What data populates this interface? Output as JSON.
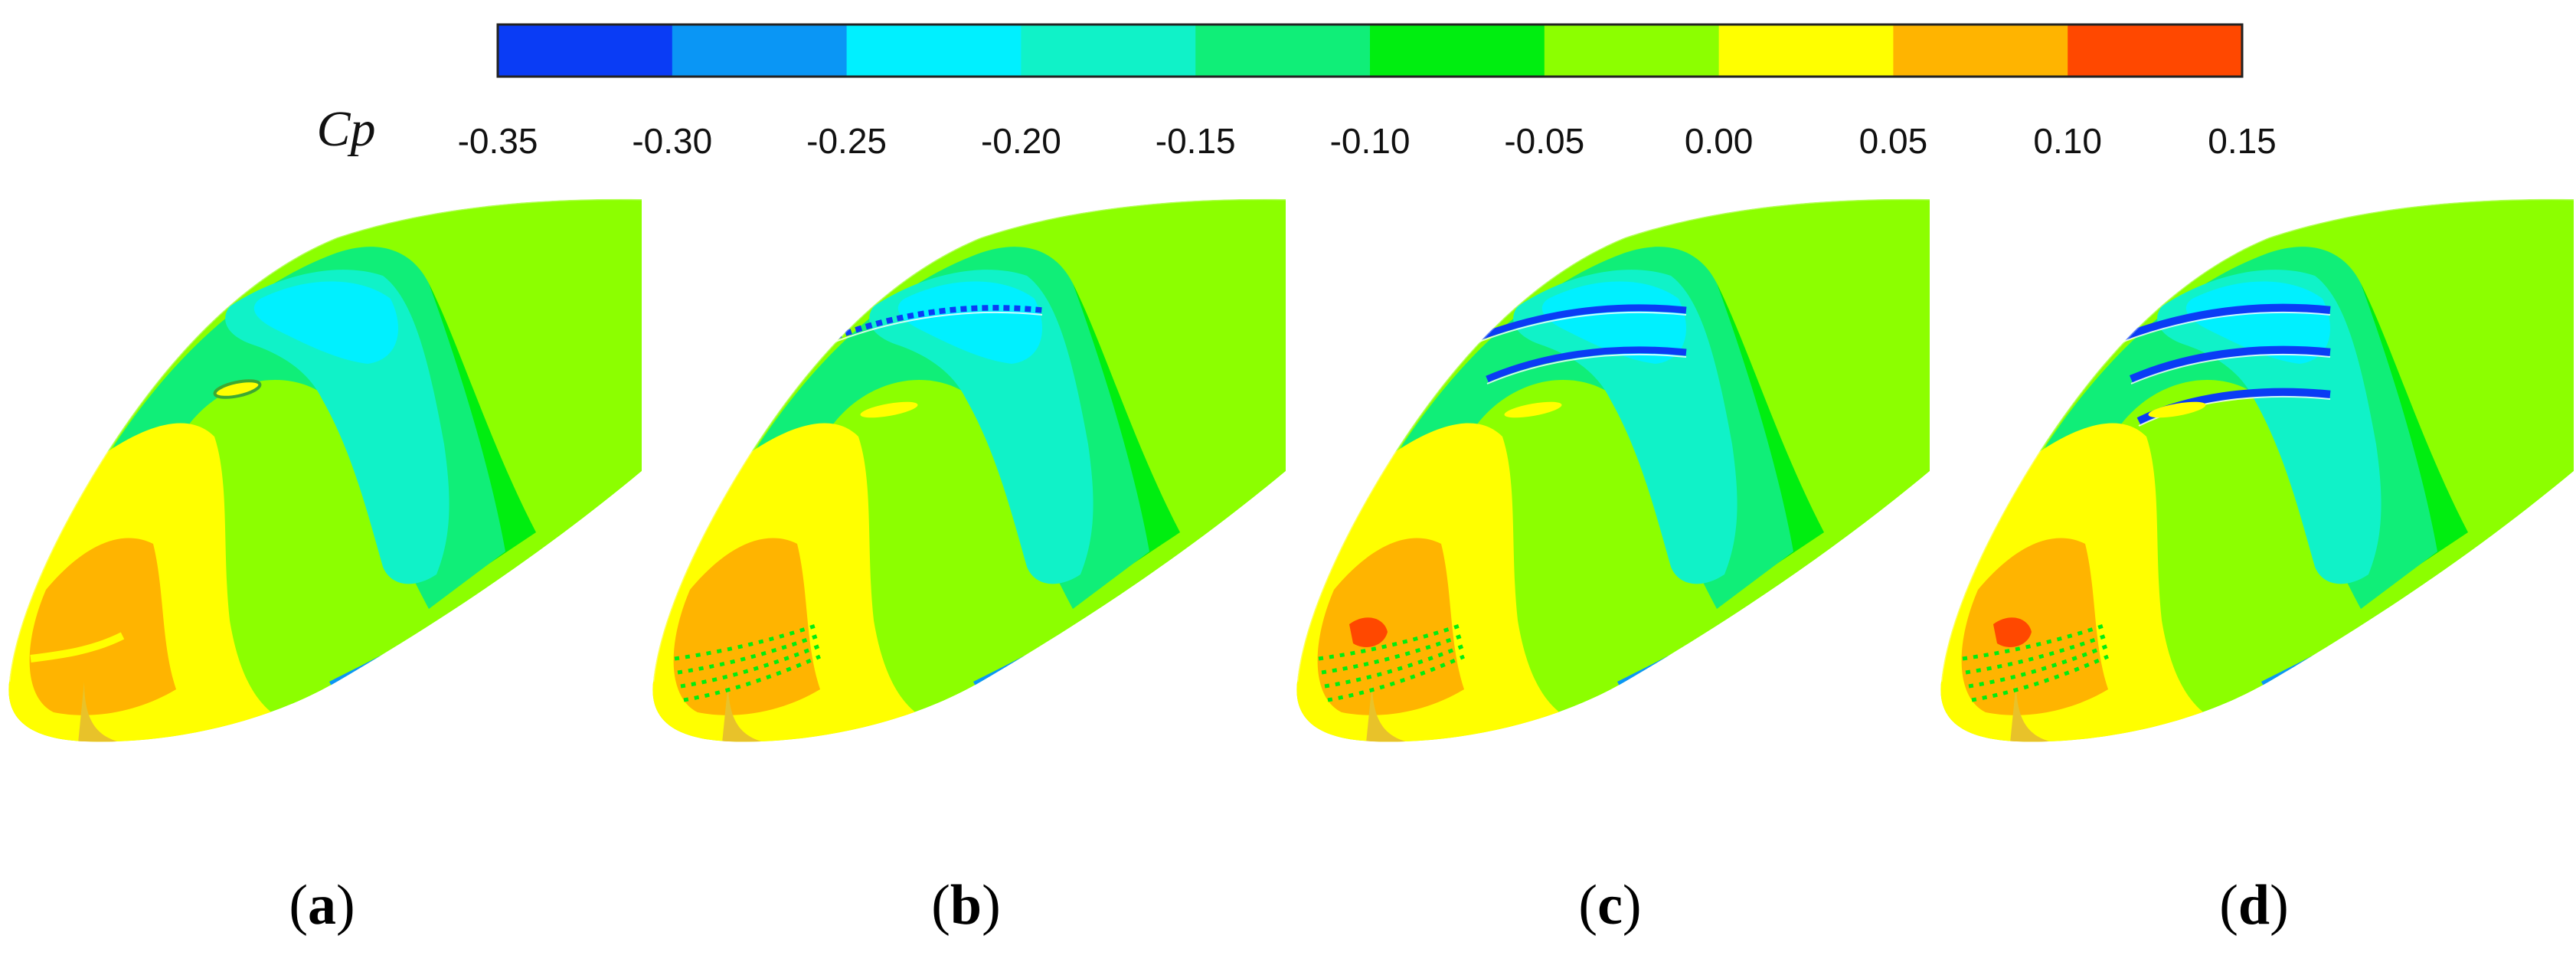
{
  "legend": {
    "variable_label": "Cp",
    "ticks": [
      "-0.35",
      "-0.30",
      "-0.25",
      "-0.20",
      "-0.15",
      "-0.10",
      "-0.05",
      "0.00",
      "0.05",
      "0.10",
      "0.15"
    ],
    "colors": [
      "#0a3cf5",
      "#0a96f5",
      "#00f0ff",
      "#10f2c8",
      "#10ee78",
      "#00ee10",
      "#8cff00",
      "#ffff00",
      "#ffb400",
      "#ff4800"
    ]
  },
  "panels": [
    {
      "open": "(",
      "letter": "a",
      "close": ")",
      "slots": 0
    },
    {
      "open": "(",
      "letter": "b",
      "close": ")",
      "slots": 1
    },
    {
      "open": "(",
      "letter": "c",
      "close": ")",
      "slots": 2
    },
    {
      "open": "(",
      "letter": "d",
      "close": ")",
      "slots": 3
    }
  ]
}
